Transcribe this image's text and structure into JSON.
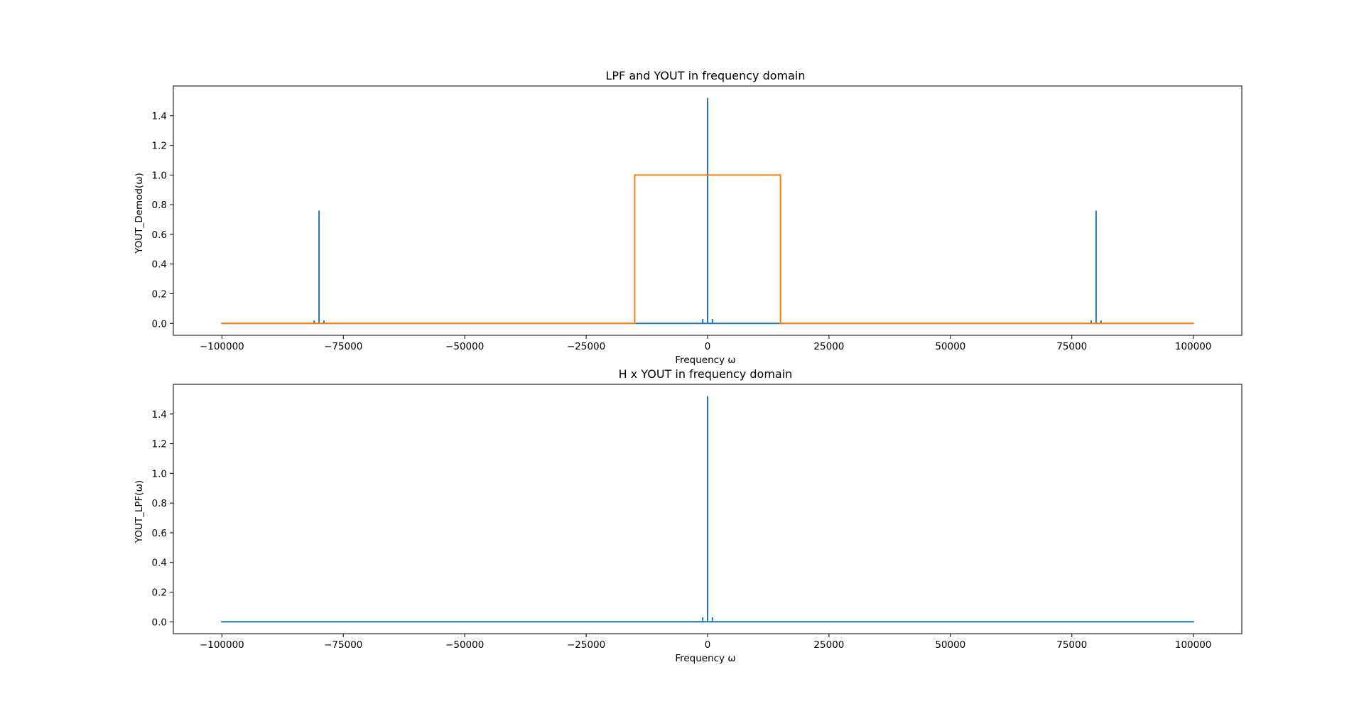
{
  "colors": {
    "series1": "#1f77b4",
    "series2": "#ff7f0e",
    "axes": "#000000",
    "background": "#ffffff"
  },
  "chart_data": [
    {
      "type": "line",
      "title": "LPF and YOUT in frequency domain",
      "xlabel": "Frequency ω",
      "ylabel": "YOUT_Demod(ω)",
      "xlim": [
        -110000,
        110000
      ],
      "ylim": [
        -0.08,
        1.6
      ],
      "xticks": [
        -100000,
        -75000,
        -50000,
        -25000,
        0,
        25000,
        50000,
        75000,
        100000
      ],
      "xtick_labels": [
        "−100000",
        "−75000",
        "−50000",
        "−25000",
        "0",
        "25000",
        "50000",
        "75000",
        "100000"
      ],
      "yticks": [
        0.0,
        0.2,
        0.4,
        0.6,
        0.8,
        1.0,
        1.2,
        1.4
      ],
      "ytick_labels": [
        "0.0",
        "0.2",
        "0.4",
        "0.6",
        "0.8",
        "1.0",
        "1.2",
        "1.4"
      ],
      "grid": false,
      "series": [
        {
          "color": "#1f77b4",
          "x": [
            -100000,
            -81000,
            -81000,
            -81000,
            -80000,
            -80000,
            -80000,
            -79000,
            -79000,
            -79000,
            -1000,
            -1000,
            -1000,
            0,
            0,
            0,
            1000,
            1000,
            1000,
            79000,
            79000,
            79000,
            80000,
            80000,
            80000,
            81000,
            81000,
            81000,
            100000
          ],
          "y": [
            0,
            0,
            0.02,
            0,
            0,
            0.76,
            0,
            0,
            0.02,
            0,
            0,
            0.03,
            0,
            0,
            1.52,
            0,
            0,
            0.03,
            0,
            0,
            0.02,
            0,
            0,
            0.76,
            0,
            0,
            0.02,
            0,
            0
          ]
        },
        {
          "color": "#ff7f0e",
          "x": [
            -100000,
            -15000,
            -15000,
            15000,
            15000,
            100000
          ],
          "y": [
            0,
            0,
            1.0,
            1.0,
            0,
            0
          ]
        }
      ]
    },
    {
      "type": "line",
      "title": "H x YOUT in frequency domain",
      "xlabel": "Frequency ω",
      "ylabel": "YOUT_LPF(ω)",
      "xlim": [
        -110000,
        110000
      ],
      "ylim": [
        -0.08,
        1.6
      ],
      "xticks": [
        -100000,
        -75000,
        -50000,
        -25000,
        0,
        25000,
        50000,
        75000,
        100000
      ],
      "xtick_labels": [
        "−100000",
        "−75000",
        "−50000",
        "−25000",
        "0",
        "25000",
        "50000",
        "75000",
        "100000"
      ],
      "yticks": [
        0.0,
        0.2,
        0.4,
        0.6,
        0.8,
        1.0,
        1.2,
        1.4
      ],
      "ytick_labels": [
        "0.0",
        "0.2",
        "0.4",
        "0.6",
        "0.8",
        "1.0",
        "1.2",
        "1.4"
      ],
      "grid": false,
      "series": [
        {
          "color": "#1f77b4",
          "x": [
            -100000,
            -1000,
            -1000,
            -1000,
            0,
            0,
            0,
            1000,
            1000,
            1000,
            100000
          ],
          "y": [
            0,
            0,
            0.03,
            0,
            0,
            1.52,
            0,
            0,
            0.03,
            0,
            0
          ]
        }
      ]
    }
  ]
}
